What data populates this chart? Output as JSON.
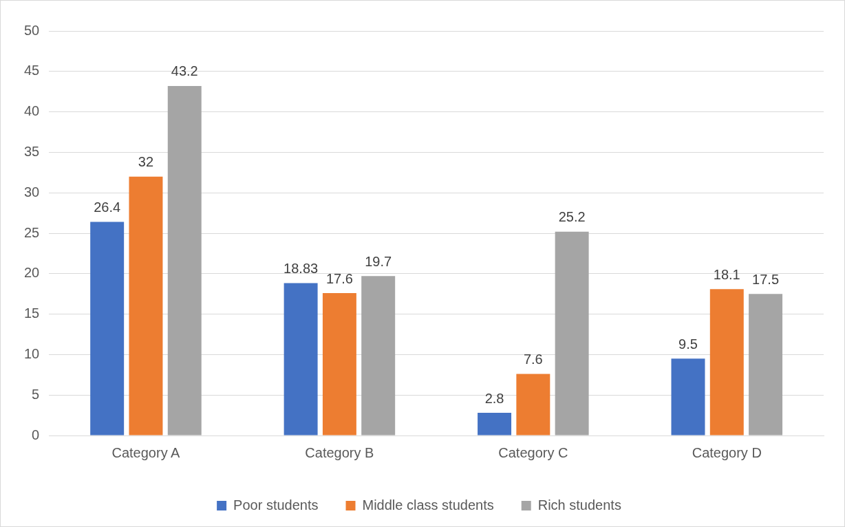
{
  "chart_data": {
    "type": "bar",
    "categories": [
      "Category A",
      "Category B",
      "Category C",
      "Category D"
    ],
    "series": [
      {
        "name": "Poor students",
        "color": "#4472c4",
        "values": [
          26.4,
          18.83,
          2.8,
          9.5
        ]
      },
      {
        "name": "Middle class students",
        "color": "#ed7d31",
        "values": [
          32,
          17.6,
          7.6,
          18.1
        ]
      },
      {
        "name": "Rich students",
        "color": "#a5a5a5",
        "values": [
          43.2,
          19.7,
          25.2,
          17.5
        ]
      }
    ],
    "ylim": [
      0,
      50
    ],
    "yticks": [
      0,
      5,
      10,
      15,
      20,
      25,
      30,
      35,
      40,
      45,
      50
    ],
    "grid": "y",
    "legend": "bottom",
    "data_labels": true
  }
}
